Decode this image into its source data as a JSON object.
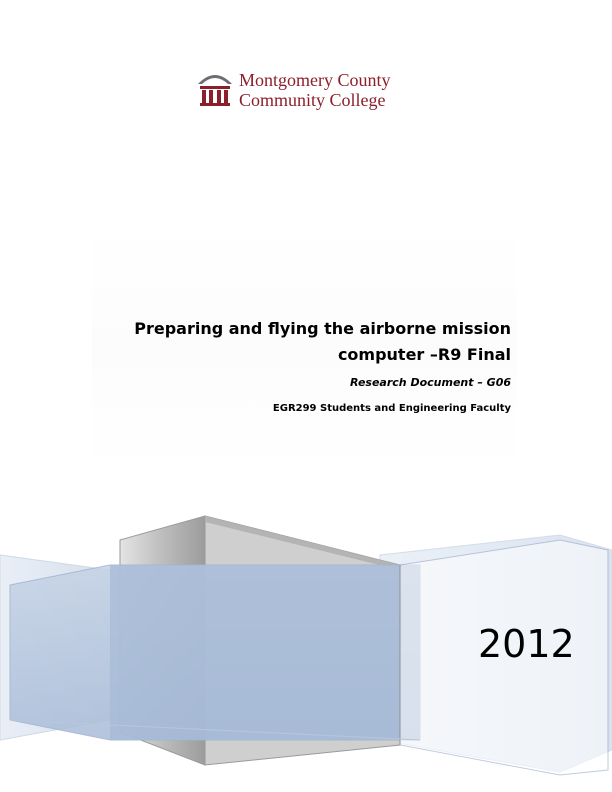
{
  "logo": {
    "line1": "Montgomery County",
    "line2": "Community College",
    "icon": "college-building-icon",
    "color": "#8c1f2b"
  },
  "document": {
    "title_line1": "Preparing and flying the airborne mission",
    "title_line2": "computer –R9 Final",
    "subtitle": "Research Document – G06",
    "authors": "EGR299 Students and Engineering Faculty",
    "year": "2012"
  }
}
